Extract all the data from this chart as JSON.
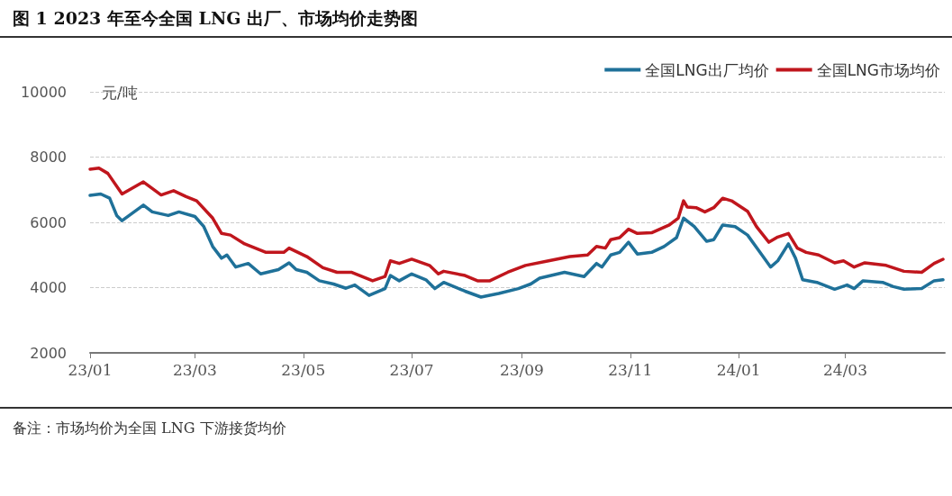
{
  "chart_data": {
    "type": "line",
    "title": "图 1 2023 年至今全国 LNG 出厂、市场均价走势图",
    "ylabel": "元/吨",
    "annotations": [
      "备注：市场均价为全国 LNG 下游接货均价"
    ],
    "xlim": [
      "2023-01-01",
      "2024-04-26"
    ],
    "xticks": [
      {
        "value": "2023-01-01",
        "label": "23/01"
      },
      {
        "value": "2023-03-01",
        "label": "23/03"
      },
      {
        "value": "2023-05-01",
        "label": "23/05"
      },
      {
        "value": "2023-07-01",
        "label": "23/07"
      },
      {
        "value": "2023-09-01",
        "label": "23/09"
      },
      {
        "value": "2023-11-01",
        "label": "23/11"
      },
      {
        "value": "2024-01-01",
        "label": "24/01"
      },
      {
        "value": "2024-03-01",
        "label": "24/03"
      }
    ],
    "ylim": [
      2000,
      10000
    ],
    "yticks": [
      2000,
      4000,
      6000,
      8000,
      10000
    ],
    "grid": "y",
    "legend": "top right",
    "marker": "none",
    "line_style": "solid",
    "series": [
      {
        "name": "全国LNG出厂均价",
        "color": "#1f7199",
        "x": [
          "2023-01-01",
          "2023-01-07",
          "2023-01-12",
          "2023-01-16",
          "2023-01-19",
          "2023-01-31",
          "2023-02-05",
          "2023-02-14",
          "2023-02-20",
          "2023-03-01",
          "2023-03-06",
          "2023-03-11",
          "2023-03-16",
          "2023-03-19",
          "2023-03-24",
          "2023-03-31",
          "2023-04-07",
          "2023-04-17",
          "2023-04-23",
          "2023-04-27",
          "2023-05-03",
          "2023-05-10",
          "2023-05-18",
          "2023-05-25",
          "2023-05-30",
          "2023-06-07",
          "2023-06-16",
          "2023-06-19",
          "2023-06-24",
          "2023-07-01",
          "2023-07-09",
          "2023-07-14",
          "2023-07-19",
          "2023-07-31",
          "2023-08-09",
          "2023-08-19",
          "2023-08-30",
          "2023-09-06",
          "2023-09-11",
          "2023-09-25",
          "2023-10-06",
          "2023-10-13",
          "2023-10-16",
          "2023-10-21",
          "2023-10-26",
          "2023-10-31",
          "2023-11-05",
          "2023-11-13",
          "2023-11-20",
          "2023-11-27",
          "2023-12-01",
          "2023-12-07",
          "2023-12-14",
          "2023-12-18",
          "2023-12-23",
          "2023-12-30",
          "2024-01-06",
          "2024-01-13",
          "2024-01-19",
          "2024-01-23",
          "2024-01-29",
          "2024-02-02",
          "2024-02-06",
          "2024-02-14",
          "2024-02-24",
          "2024-03-02",
          "2024-03-06",
          "2024-03-11",
          "2024-03-22",
          "2024-03-28",
          "2024-04-03",
          "2024-04-13",
          "2024-04-20",
          "2024-04-25"
        ],
        "values": [
          6830,
          6870,
          6740,
          6210,
          6050,
          6530,
          6320,
          6210,
          6320,
          6180,
          5870,
          5260,
          4900,
          5000,
          4630,
          4740,
          4420,
          4550,
          4760,
          4550,
          4470,
          4210,
          4110,
          3980,
          4080,
          3760,
          3970,
          4370,
          4210,
          4420,
          4240,
          3970,
          4160,
          3890,
          3710,
          3820,
          3970,
          4110,
          4290,
          4470,
          4340,
          4740,
          4630,
          5000,
          5080,
          5390,
          5030,
          5080,
          5260,
          5530,
          6130,
          5870,
          5420,
          5470,
          5920,
          5870,
          5610,
          5080,
          4630,
          4820,
          5340,
          4900,
          4240,
          4160,
          3950,
          4080,
          3970,
          4210,
          4160,
          4030,
          3950,
          3970,
          4210,
          4240
        ]
      },
      {
        "name": "全国LNG市场均价",
        "color": "#c0161d",
        "x": [
          "2023-01-01",
          "2023-01-06",
          "2023-01-11",
          "2023-01-19",
          "2023-01-31",
          "2023-02-10",
          "2023-02-17",
          "2023-02-24",
          "2023-03-02",
          "2023-03-11",
          "2023-03-16",
          "2023-03-21",
          "2023-03-29",
          "2023-04-10",
          "2023-04-20",
          "2023-04-23",
          "2023-05-03",
          "2023-05-12",
          "2023-05-20",
          "2023-05-28",
          "2023-06-09",
          "2023-06-16",
          "2023-06-19",
          "2023-06-24",
          "2023-07-01",
          "2023-07-11",
          "2023-07-16",
          "2023-07-19",
          "2023-07-31",
          "2023-08-07",
          "2023-08-14",
          "2023-08-24",
          "2023-09-03",
          "2023-09-16",
          "2023-09-28",
          "2023-10-08",
          "2023-10-13",
          "2023-10-18",
          "2023-10-21",
          "2023-10-26",
          "2023-10-31",
          "2023-11-05",
          "2023-11-13",
          "2023-11-23",
          "2023-11-28",
          "2023-12-01",
          "2023-12-03",
          "2023-12-08",
          "2023-12-13",
          "2023-12-18",
          "2023-12-23",
          "2023-12-28",
          "2024-01-06",
          "2024-01-11",
          "2024-01-18",
          "2024-01-23",
          "2024-01-29",
          "2024-02-03",
          "2024-02-08",
          "2024-02-15",
          "2024-02-24",
          "2024-02-29",
          "2024-03-06",
          "2024-03-12",
          "2024-03-24",
          "2024-04-03",
          "2024-04-13",
          "2024-04-20",
          "2024-04-25"
        ],
        "values": [
          7630,
          7660,
          7500,
          6870,
          7240,
          6840,
          6970,
          6790,
          6660,
          6130,
          5660,
          5610,
          5340,
          5080,
          5080,
          5210,
          4950,
          4610,
          4470,
          4470,
          4210,
          4340,
          4820,
          4740,
          4870,
          4680,
          4420,
          4500,
          4370,
          4210,
          4210,
          4470,
          4680,
          4820,
          4950,
          5000,
          5260,
          5210,
          5470,
          5530,
          5790,
          5660,
          5680,
          5920,
          6130,
          6660,
          6470,
          6450,
          6320,
          6450,
          6740,
          6660,
          6340,
          5870,
          5390,
          5550,
          5660,
          5210,
          5080,
          5000,
          4760,
          4820,
          4630,
          4760,
          4680,
          4500,
          4470,
          4740,
          4870
        ]
      }
    ]
  }
}
